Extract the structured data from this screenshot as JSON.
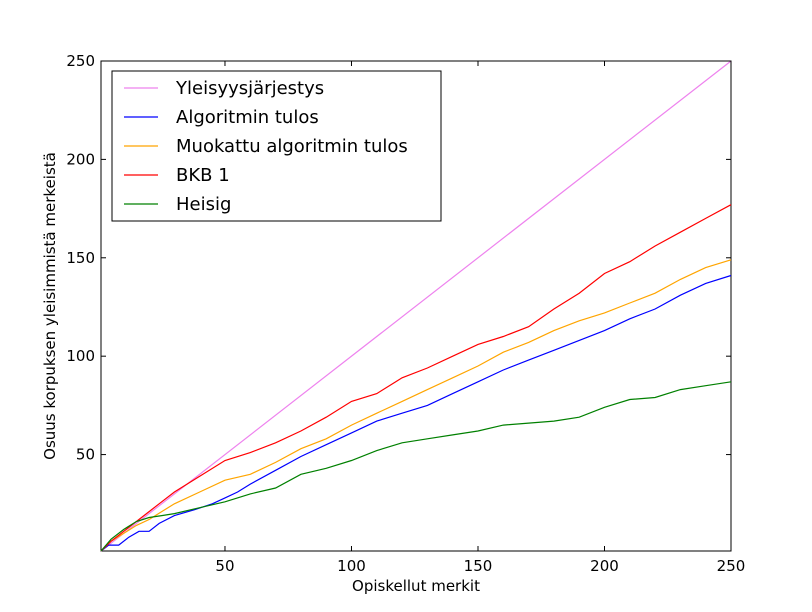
{
  "chart_data": {
    "type": "line",
    "title": "",
    "xlabel": "Opiskellut merkit",
    "ylabel": "Osuus korpuksen yleisimmistä merkeistä",
    "xlim": [
      1,
      250
    ],
    "ylim": [
      1,
      250
    ],
    "xticks": [
      50,
      100,
      150,
      200,
      250
    ],
    "yticks": [
      50,
      100,
      150,
      200,
      250
    ],
    "grid": false,
    "legend_position": "top-left",
    "series": [
      {
        "name": "Yleisyysjärjestys",
        "color": "#ee82ee",
        "x": [
          1,
          250
        ],
        "y": [
          1,
          250
        ]
      },
      {
        "name": "Algoritmin tulos",
        "color": "#0000ff",
        "x": [
          1,
          4,
          8,
          12,
          16,
          20,
          24,
          30,
          38,
          45,
          50,
          55,
          60,
          70,
          80,
          90,
          100,
          110,
          120,
          130,
          140,
          150,
          160,
          170,
          180,
          190,
          200,
          210,
          220,
          230,
          240,
          250
        ],
        "y": [
          1,
          4,
          4,
          8,
          11,
          11,
          15,
          19,
          22,
          25,
          28,
          31,
          35,
          42,
          49,
          55,
          61,
          67,
          71,
          75,
          81,
          87,
          93,
          98,
          103,
          108,
          113,
          119,
          124,
          131,
          137,
          141
        ]
      },
      {
        "name": "Muokattu algoritmin tulos",
        "color": "#ffa500",
        "x": [
          1,
          5,
          10,
          15,
          20,
          25,
          30,
          40,
          50,
          60,
          70,
          80,
          90,
          100,
          110,
          120,
          130,
          140,
          150,
          160,
          170,
          180,
          190,
          200,
          210,
          220,
          230,
          240,
          250
        ],
        "y": [
          1,
          6,
          10,
          14,
          17,
          21,
          25,
          31,
          37,
          40,
          46,
          53,
          58,
          65,
          71,
          77,
          83,
          89,
          95,
          102,
          107,
          113,
          118,
          122,
          127,
          132,
          139,
          145,
          149
        ]
      },
      {
        "name": "BKB 1",
        "color": "#ff0000",
        "x": [
          1,
          5,
          10,
          15,
          20,
          25,
          30,
          40,
          50,
          60,
          70,
          80,
          90,
          100,
          110,
          120,
          130,
          140,
          150,
          160,
          170,
          180,
          190,
          200,
          210,
          220,
          230,
          240,
          250
        ],
        "y": [
          1,
          6,
          11,
          16,
          21,
          26,
          31,
          39,
          47,
          51,
          56,
          62,
          69,
          77,
          81,
          89,
          94,
          100,
          106,
          110,
          115,
          124,
          132,
          142,
          148,
          156,
          163,
          170,
          177
        ]
      },
      {
        "name": "Heisig",
        "color": "#008000",
        "x": [
          1,
          5,
          10,
          15,
          20,
          25,
          30,
          40,
          50,
          60,
          70,
          80,
          90,
          100,
          110,
          120,
          130,
          140,
          150,
          160,
          170,
          180,
          190,
          200,
          210,
          220,
          230,
          240,
          250
        ],
        "y": [
          1,
          7,
          12,
          16,
          18,
          19,
          20,
          23,
          26,
          30,
          33,
          40,
          43,
          47,
          52,
          56,
          58,
          60,
          62,
          65,
          66,
          67,
          69,
          74,
          78,
          79,
          83,
          85,
          87
        ]
      }
    ]
  }
}
